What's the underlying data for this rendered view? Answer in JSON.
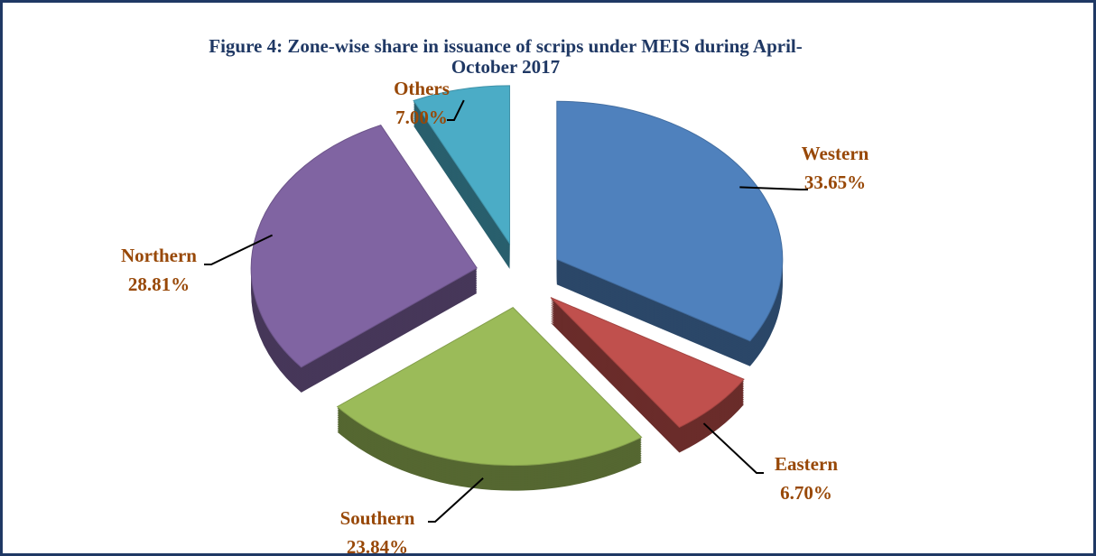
{
  "chart_data": {
    "type": "pie",
    "title": "Figure 4: Zone-wise share in issuance of scrips under MEIS during April-October 2017",
    "categories": [
      "Western",
      "Eastern",
      "Southern",
      "Northern",
      "Others"
    ],
    "values": [
      33.65,
      6.7,
      23.84,
      28.81,
      7.0
    ],
    "value_labels": [
      "33.65%",
      "6.70%",
      "23.84%",
      "28.81%",
      "7.00%"
    ],
    "colors": [
      "#4f81bd",
      "#c0504d",
      "#9bbb59",
      "#8064a2",
      "#4bacc6"
    ]
  }
}
